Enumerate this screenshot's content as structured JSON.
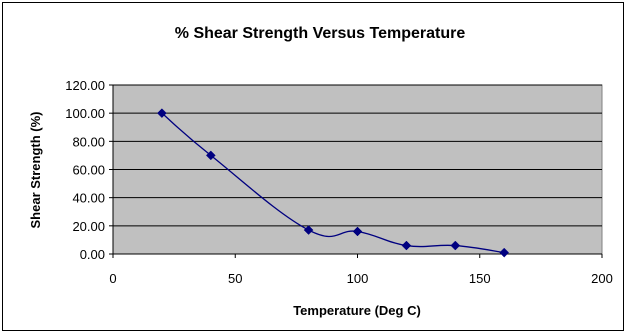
{
  "chart_data": {
    "type": "line",
    "title": "% Shear Strength Versus Temperature",
    "xlabel": "Temperature (Deg C)",
    "ylabel": "Shear Strength (%)",
    "xlim": [
      0,
      200
    ],
    "ylim": [
      0,
      120
    ],
    "xticks": [
      "0",
      "50",
      "100",
      "150",
      "200"
    ],
    "yticks": [
      "0.00",
      "20.00",
      "40.00",
      "60.00",
      "80.00",
      "100.00",
      "120.00"
    ],
    "grid": "horizontal",
    "legend": "none",
    "plot_background": "#c0c0c0",
    "series": [
      {
        "color": "#000080",
        "marker": "diamond",
        "x": [
          20,
          40,
          80,
          100,
          120,
          140,
          160
        ],
        "y": [
          100,
          70,
          17,
          16,
          6,
          6,
          1
        ]
      }
    ]
  }
}
